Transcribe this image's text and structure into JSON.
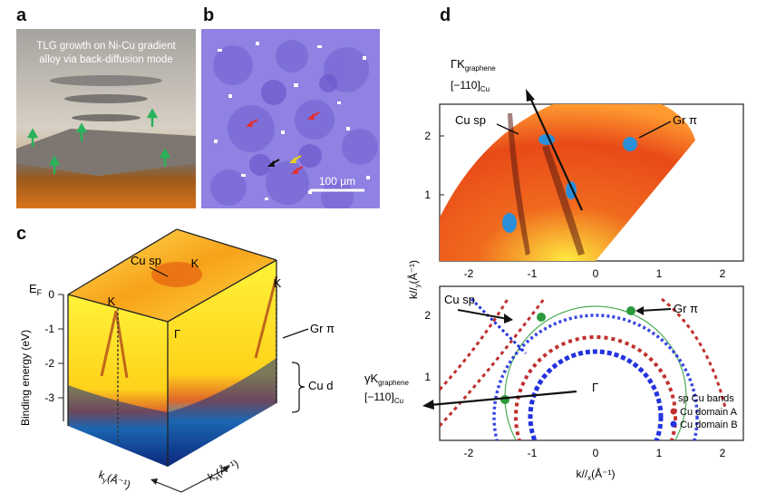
{
  "panel_labels": {
    "a": "a",
    "b": "b",
    "c": "c",
    "d": "d"
  },
  "panel_a": {
    "caption_line1": "TLG growth on Ni-Cu gradient",
    "caption_line2": "alloy via back-diffusion mode"
  },
  "panel_b": {
    "scalebar": "100 µm"
  },
  "panel_c": {
    "ef": "E",
    "ef_sub": "F",
    "ylabel": "Binding energy (eV)",
    "yticks": [
      "0",
      "-1",
      "-2",
      "-3"
    ],
    "k_left": "K",
    "k_top": "K",
    "k_right": "K",
    "gamma": "Γ",
    "cu_sp": "Cu sp",
    "gr_pi": "Gr π",
    "cu_d": "Cu d",
    "ky": "k",
    "ky_sub": "y",
    "ky_unit": "(Å⁻¹)",
    "kx": "k",
    "kx_sub": "x",
    "kx_unit": "(Å⁻¹)"
  },
  "panel_d": {
    "top_dir_1": "ΓK",
    "top_dir_sub": "graphene",
    "top_dir_2": "[−110]",
    "top_dir_2_sub": "Cu",
    "cu_sp_top": "Cu sp",
    "gr_pi_top": "Gr π",
    "cu_sp_bot": "Cu sp",
    "gr_pi_bot": "Gr π",
    "gamma": "Γ",
    "bot_dir_1": "γK",
    "bot_dir_sub": "graphene",
    "bot_dir_2": "[−110]",
    "bot_dir_2_sub": "Cu",
    "legend_title": "sp Cu bands",
    "legend_a": "Cu domain A",
    "legend_b": "Cu domain B",
    "legend_a_color": "#c0302e",
    "legend_b_color": "#2233dd",
    "xticks": [
      "-2",
      "-1",
      "0",
      "1",
      "2"
    ],
    "top_yticks": [
      "1",
      "2"
    ],
    "bot_yticks": [
      "1",
      "2"
    ],
    "xlabel": "k//",
    "xlabel_sub": "x",
    "xlabel_unit": "(Å⁻¹)",
    "ylabel": "k//",
    "ylabel_sub": "y",
    "ylabel_unit": "(Å⁻¹)"
  }
}
